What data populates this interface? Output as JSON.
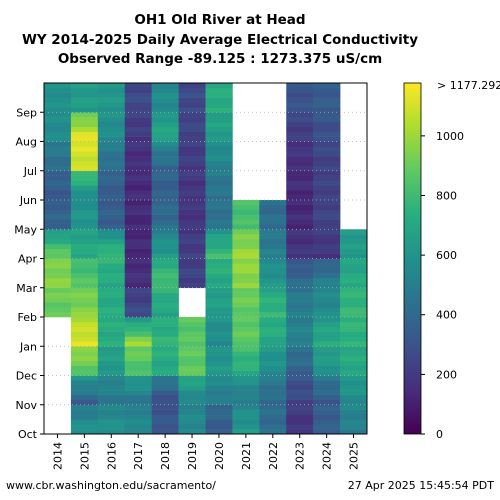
{
  "chart_data": {
    "type": "heatmap",
    "title_lines": [
      "OH1 Old River at Head",
      "WY 2014-2025 Daily Average Electrical Conductivity",
      "Observed Range -89.125 : 1273.375 uS/cm"
    ],
    "observed_range": [
      -89.125,
      1273.375
    ],
    "units": "uS/cm",
    "x_categories": [
      "2014",
      "2015",
      "2016",
      "2017",
      "2018",
      "2019",
      "2020",
      "2021",
      "2022",
      "2023",
      "2024",
      "2025"
    ],
    "y_ticks": [
      "Oct",
      "Nov",
      "Dec",
      "Jan",
      "Feb",
      "Mar",
      "Apr",
      "May",
      "Jun",
      "Jul",
      "Aug",
      "Sep"
    ],
    "colorbar": {
      "colormap": "viridis",
      "range": [
        0,
        1177.292
      ],
      "ticks": [
        "0",
        "200",
        "400",
        "600",
        "800",
        "1000"
      ],
      "top_label": "> 1177.292"
    },
    "series_monthly_means": [
      {
        "year": "2014",
        "values": [
          null,
          null,
          null,
          null,
          880,
          960,
          900,
          380,
          330,
          420,
          560,
          580
        ]
      },
      {
        "year": "2015",
        "values": [
          600,
          350,
          860,
          1120,
          960,
          860,
          720,
          620,
          560,
          1080,
          1140,
          640
        ]
      },
      {
        "year": "2016",
        "values": [
          600,
          470,
          620,
          720,
          720,
          700,
          800,
          360,
          340,
          420,
          560,
          620
        ]
      },
      {
        "year": "2017",
        "values": [
          560,
          460,
          820,
          1000,
          260,
          160,
          140,
          140,
          140,
          150,
          190,
          260
        ]
      },
      {
        "year": "2018",
        "values": [
          330,
          270,
          700,
          760,
          680,
          820,
          640,
          420,
          360,
          380,
          700,
          560
        ]
      },
      {
        "year": "2019",
        "values": [
          560,
          520,
          880,
          860,
          null,
          230,
          220,
          180,
          180,
          200,
          240,
          260
        ]
      },
      {
        "year": "2020",
        "values": [
          330,
          480,
          620,
          560,
          640,
          700,
          800,
          440,
          440,
          520,
          640,
          720
        ]
      },
      {
        "year": "2021",
        "values": [
          620,
          480,
          720,
          880,
          880,
          960,
          1000,
          820,
          null,
          null,
          null,
          null
        ]
      },
      {
        "year": "2022",
        "values": [
          420,
          400,
          560,
          700,
          780,
          620,
          500,
          420,
          null,
          null,
          null,
          null
        ]
      },
      {
        "year": "2023",
        "values": [
          170,
          240,
          360,
          520,
          500,
          420,
          180,
          140,
          140,
          160,
          200,
          300
        ]
      },
      {
        "year": "2024",
        "values": [
          360,
          330,
          600,
          720,
          560,
          520,
          180,
          240,
          240,
          230,
          280,
          340
        ]
      },
      {
        "year": "2025",
        "values": [
          500,
          560,
          700,
          740,
          780,
          720,
          640,
          null,
          null,
          null,
          null,
          null
        ]
      }
    ]
  },
  "footer": {
    "left": "www.cbr.washington.edu/sacramento/",
    "right": "27 Apr 2025 15:45:54 PDT"
  }
}
